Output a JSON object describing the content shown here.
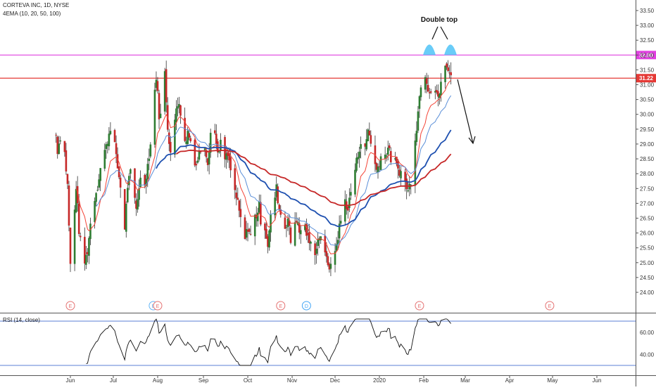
{
  "header": {
    "symbol_line": "CORTEVA INC, 1D, NYSE",
    "indicator_line": "4EMA (10, 20, 50, 100)"
  },
  "rsi_panel": {
    "label": "RSI (14, close)"
  },
  "annotation": {
    "text": "Double top"
  },
  "chart_data": [
    {
      "type": "candlestick",
      "title": "CORTEVA INC, 1D, NYSE",
      "price_axis": {
        "ylim": [
          23.3,
          33.6
        ],
        "ticks": [
          "24.00",
          "24.50",
          "25.00",
          "25.50",
          "26.00",
          "26.50",
          "27.00",
          "27.50",
          "28.00",
          "28.50",
          "29.00",
          "29.50",
          "30.00",
          "30.50",
          "31.00",
          "31.50",
          "32.00",
          "32.50",
          "33.00",
          "33.50"
        ],
        "tick_values": [
          24.0,
          24.5,
          25.0,
          25.5,
          26.0,
          26.5,
          27.0,
          27.5,
          28.0,
          28.5,
          29.0,
          29.5,
          30.0,
          30.5,
          31.0,
          31.5,
          32.0,
          32.5,
          33.0,
          33.5
        ]
      },
      "time_axis": {
        "labels": [
          "Jun",
          "Jul",
          "Aug",
          "Sep",
          "Oct",
          "Nov",
          "Dec",
          "2020",
          "Feb",
          "Mar",
          "Apr",
          "May",
          "Jun"
        ],
        "label_day": [
          4,
          34,
          65,
          97,
          128,
          159,
          189,
          220,
          251,
          280,
          311,
          341,
          372
        ],
        "day_max": 396,
        "last_bar_day": 270
      },
      "horizontal_lines": [
        {
          "price": 32.0,
          "label": "32.00",
          "color": "#e040e0"
        },
        {
          "price": 31.22,
          "label": "31.22",
          "color": "#e53935"
        }
      ],
      "ema": [
        {
          "name": "EMA10",
          "period": 10,
          "color": "#f44336"
        },
        {
          "name": "EMA20",
          "period": 20,
          "color": "#5b8fd8"
        },
        {
          "name": "EMA50",
          "period": 50,
          "color": "#1e50b0"
        },
        {
          "name": "EMA100",
          "period": 100,
          "color": "#c62828"
        }
      ],
      "key_points": [
        {
          "day": -6,
          "close": 29.3
        },
        {
          "day": -5,
          "close": 28.8
        },
        {
          "day": -2,
          "close": 29.5
        },
        {
          "day": 0,
          "close": 28.7
        },
        {
          "day": 2,
          "close": 27.6
        },
        {
          "day": 4,
          "close": 24.9
        },
        {
          "day": 5,
          "close": 25.1
        },
        {
          "day": 8,
          "close": 27.6
        },
        {
          "day": 10,
          "close": 26.1
        },
        {
          "day": 12,
          "close": 25.3
        },
        {
          "day": 14,
          "close": 25.0
        },
        {
          "day": 16,
          "close": 25.4
        },
        {
          "day": 18,
          "close": 26.3
        },
        {
          "day": 20,
          "close": 27.0
        },
        {
          "day": 23,
          "close": 27.6
        },
        {
          "day": 26,
          "close": 28.5
        },
        {
          "day": 29,
          "close": 28.9
        },
        {
          "day": 32,
          "close": 29.6
        },
        {
          "day": 34,
          "close": 29.5
        },
        {
          "day": 36,
          "close": 28.5
        },
        {
          "day": 38,
          "close": 27.9
        },
        {
          "day": 40,
          "close": 27.2
        },
        {
          "day": 42,
          "close": 26.2
        },
        {
          "day": 44,
          "close": 27.6
        },
        {
          "day": 46,
          "close": 28.0
        },
        {
          "day": 48,
          "close": 27.4
        },
        {
          "day": 50,
          "close": 26.8
        },
        {
          "day": 52,
          "close": 27.6
        },
        {
          "day": 54,
          "close": 28.0
        },
        {
          "day": 56,
          "close": 27.7
        },
        {
          "day": 58,
          "close": 28.3
        },
        {
          "day": 60,
          "close": 29.0
        },
        {
          "day": 62,
          "close": 30.3
        },
        {
          "day": 64,
          "close": 31.3
        },
        {
          "day": 66,
          "close": 30.0
        },
        {
          "day": 68,
          "close": 29.9
        },
        {
          "day": 70,
          "close": 31.4
        },
        {
          "day": 72,
          "close": 29.6
        },
        {
          "day": 74,
          "close": 28.7
        },
        {
          "day": 76,
          "close": 29.2
        },
        {
          "day": 78,
          "close": 30.2
        },
        {
          "day": 80,
          "close": 30.5
        },
        {
          "day": 82,
          "close": 29.6
        },
        {
          "day": 84,
          "close": 29.0
        },
        {
          "day": 86,
          "close": 29.4
        },
        {
          "day": 88,
          "close": 29.1
        },
        {
          "day": 90,
          "close": 28.6
        },
        {
          "day": 92,
          "close": 28.3
        },
        {
          "day": 94,
          "close": 28.7
        },
        {
          "day": 96,
          "close": 28.9
        },
        {
          "day": 98,
          "close": 29.0
        },
        {
          "day": 100,
          "close": 28.4
        },
        {
          "day": 102,
          "close": 29.4
        },
        {
          "day": 104,
          "close": 29.7
        },
        {
          "day": 106,
          "close": 29.0
        },
        {
          "day": 108,
          "close": 28.7
        },
        {
          "day": 110,
          "close": 29.3
        },
        {
          "day": 112,
          "close": 28.5
        },
        {
          "day": 114,
          "close": 28.6
        },
        {
          "day": 116,
          "close": 28.1
        },
        {
          "day": 118,
          "close": 27.6
        },
        {
          "day": 120,
          "close": 27.2
        },
        {
          "day": 122,
          "close": 26.7
        },
        {
          "day": 124,
          "close": 26.2
        },
        {
          "day": 126,
          "close": 25.8
        },
        {
          "day": 128,
          "close": 26.2
        },
        {
          "day": 130,
          "close": 25.9
        },
        {
          "day": 132,
          "close": 26.5
        },
        {
          "day": 134,
          "close": 26.6
        },
        {
          "day": 136,
          "close": 26.9
        },
        {
          "day": 138,
          "close": 26.0
        },
        {
          "day": 140,
          "close": 26.2
        },
        {
          "day": 142,
          "close": 25.6
        },
        {
          "day": 144,
          "close": 26.5
        },
        {
          "day": 146,
          "close": 27.0
        },
        {
          "day": 148,
          "close": 27.5
        },
        {
          "day": 150,
          "close": 26.8
        },
        {
          "day": 152,
          "close": 26.5
        },
        {
          "day": 154,
          "close": 26.2
        },
        {
          "day": 156,
          "close": 26.5
        },
        {
          "day": 158,
          "close": 25.7
        },
        {
          "day": 160,
          "close": 26.3
        },
        {
          "day": 162,
          "close": 26.5
        },
        {
          "day": 164,
          "close": 26.0
        },
        {
          "day": 166,
          "close": 26.3
        },
        {
          "day": 168,
          "close": 26.2
        },
        {
          "day": 170,
          "close": 25.8
        },
        {
          "day": 172,
          "close": 25.6
        },
        {
          "day": 174,
          "close": 25.2
        },
        {
          "day": 176,
          "close": 25.6
        },
        {
          "day": 178,
          "close": 25.9
        },
        {
          "day": 180,
          "close": 26.0
        },
        {
          "day": 182,
          "close": 25.2
        },
        {
          "day": 184,
          "close": 25.0
        },
        {
          "day": 186,
          "close": 24.8
        },
        {
          "day": 188,
          "close": 25.3
        },
        {
          "day": 190,
          "close": 25.6
        },
        {
          "day": 192,
          "close": 26.2
        },
        {
          "day": 194,
          "close": 26.6
        },
        {
          "day": 196,
          "close": 27.1
        },
        {
          "day": 198,
          "close": 26.8
        },
        {
          "day": 200,
          "close": 27.4
        },
        {
          "day": 202,
          "close": 27.9
        },
        {
          "day": 204,
          "close": 28.4
        },
        {
          "day": 206,
          "close": 28.9
        },
        {
          "day": 208,
          "close": 29.2
        },
        {
          "day": 210,
          "close": 28.8
        },
        {
          "day": 212,
          "close": 29.5
        },
        {
          "day": 214,
          "close": 29.1
        },
        {
          "day": 216,
          "close": 28.5
        },
        {
          "day": 218,
          "close": 28.1
        },
        {
          "day": 220,
          "close": 28.4
        },
        {
          "day": 222,
          "close": 28.8
        },
        {
          "day": 224,
          "close": 28.6
        },
        {
          "day": 226,
          "close": 28.9
        },
        {
          "day": 228,
          "close": 28.5
        },
        {
          "day": 230,
          "close": 28.6
        },
        {
          "day": 232,
          "close": 28.2
        },
        {
          "day": 234,
          "close": 28.1
        },
        {
          "day": 236,
          "close": 28.0
        },
        {
          "day": 238,
          "close": 27.7
        },
        {
          "day": 240,
          "close": 27.4
        },
        {
          "day": 242,
          "close": 27.8
        },
        {
          "day": 244,
          "close": 28.9
        },
        {
          "day": 246,
          "close": 29.6
        },
        {
          "day": 248,
          "close": 30.6
        },
        {
          "day": 250,
          "close": 31.5
        },
        {
          "day": 251,
          "close": 31.9
        },
        {
          "day": 252,
          "close": 31.4
        },
        {
          "day": 254,
          "close": 30.9
        },
        {
          "day": 256,
          "close": 30.8
        },
        {
          "day": 258,
          "close": 31.0
        },
        {
          "day": 260,
          "close": 30.6
        },
        {
          "day": 262,
          "close": 30.7
        },
        {
          "day": 264,
          "close": 31.3
        },
        {
          "day": 266,
          "close": 31.6
        },
        {
          "day": 268,
          "close": 31.6
        },
        {
          "day": 270,
          "close": 31.22
        }
      ],
      "earnings_markers": [
        {
          "day": 4,
          "label": "E",
          "color": "#e57373"
        },
        {
          "day": 62,
          "label": "E",
          "color": "#64b5f6"
        },
        {
          "day": 65,
          "label": "E",
          "color": "#e57373"
        },
        {
          "day": 151,
          "label": "E",
          "color": "#e57373"
        },
        {
          "day": 169,
          "label": "D",
          "color": "#42a5f5"
        },
        {
          "day": 248,
          "label": "E",
          "color": "#e57373"
        },
        {
          "day": 339,
          "label": "E",
          "color": "#e57373"
        }
      ]
    },
    {
      "type": "line",
      "title": "RSI (14, close)",
      "ylim": [
        28,
        76
      ],
      "ticks": [
        "40.00",
        "60.00"
      ],
      "tick_values": [
        40,
        60
      ],
      "band_lines": [
        70,
        30
      ],
      "color": "#111111"
    }
  ]
}
